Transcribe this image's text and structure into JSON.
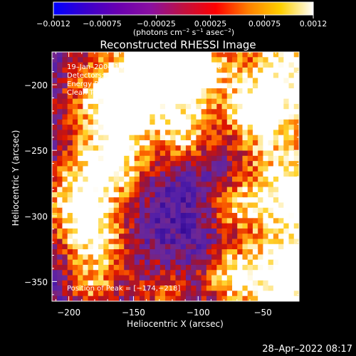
{
  "chart_data": {
    "type": "heatmap",
    "title": "Reconstructed RHESSI Image",
    "xlabel": "Heliocentric X (arcsec)",
    "ylabel": "Heliocentric Y (arcsec)",
    "xlim": [
      -213,
      -22
    ],
    "ylim": [
      -365,
      -175
    ],
    "x_ticks": [
      -200,
      -150,
      -100,
      -50
    ],
    "x_tick_labels": [
      "−200",
      "−150",
      "−100",
      "−50"
    ],
    "y_ticks": [
      -200,
      -250,
      -300,
      -350
    ],
    "y_tick_labels": [
      "−200",
      "−250",
      "−300",
      "−350"
    ],
    "colorbar": {
      "range": [
        -0.0012,
        0.0012
      ],
      "ticks": [
        -0.0012,
        -0.00075,
        -0.00025,
        0.00025,
        0.00075,
        0.0012
      ],
      "tick_labels": [
        "−0.0012",
        "−0.00075",
        "−0.00025",
        "0.00025",
        "0.00075",
        "0.0012"
      ],
      "units_pre": "(photons cm",
      "units_exp1": "−2",
      "units_mid": " s",
      "units_exp2": "−1",
      "units_post": " asec",
      "units_exp3": "−2",
      "units_close": ")",
      "colors": [
        "#0000ff",
        "#3a00cc",
        "#6a00b0",
        "#8a10a0",
        "#c01040",
        "#ff0000",
        "#ff8000",
        "#ffd000",
        "#ffffff"
      ]
    },
    "annotations": [
      "19–Jan–2004 14:00:44.000 to 14:06:44.000",
      "Detectors: 3F 4F 5F 6F 7F 8F, Att 0",
      "Energy Range: 25.0 – 50.0 keV",
      "Clean    Total counts: 7.82E+04"
    ],
    "peak_label": "Position of Peak = [−174,−218]",
    "peak_position": [
      -174,
      -218
    ],
    "grid_resolution": 48,
    "image_min": 0,
    "image_max": 0.0012
  },
  "footer": {
    "timestamp": "28–Apr–2022 08:17"
  }
}
